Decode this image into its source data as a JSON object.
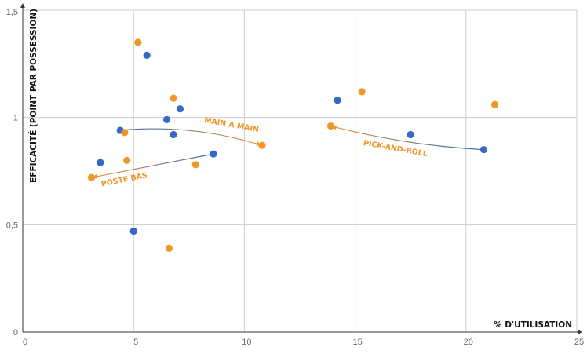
{
  "chart_data": {
    "type": "scatter",
    "xlabel": "% D'UTILISATION",
    "ylabel": "EFFICACITÉ (POINT PAR POSSESSION)",
    "xlim": [
      0,
      25
    ],
    "ylim": [
      0,
      1.5
    ],
    "x_ticks": [
      "0",
      "5",
      "10",
      "15",
      "20",
      "25"
    ],
    "y_ticks": [
      "0",
      "0,5",
      "1",
      "1,5"
    ],
    "grid": true,
    "colors": {
      "blue": "#3568c8",
      "orange": "#f0962a",
      "grid": "#cccccc",
      "axis": "#333333"
    },
    "series": [
      {
        "color": "blue",
        "points": [
          {
            "x": 3.5,
            "y": 0.79
          },
          {
            "x": 4.4,
            "y": 0.94
          },
          {
            "x": 5.0,
            "y": 0.47
          },
          {
            "x": 5.6,
            "y": 1.29
          },
          {
            "x": 6.5,
            "y": 0.99
          },
          {
            "x": 6.8,
            "y": 0.92
          },
          {
            "x": 7.1,
            "y": 1.04
          },
          {
            "x": 8.6,
            "y": 0.83
          },
          {
            "x": 14.2,
            "y": 1.08
          },
          {
            "x": 17.5,
            "y": 0.92
          },
          {
            "x": 20.8,
            "y": 0.85
          }
        ]
      },
      {
        "color": "orange",
        "points": [
          {
            "x": 3.1,
            "y": 0.72
          },
          {
            "x": 4.6,
            "y": 0.93
          },
          {
            "x": 4.7,
            "y": 0.8
          },
          {
            "x": 5.2,
            "y": 1.35
          },
          {
            "x": 6.6,
            "y": 0.39
          },
          {
            "x": 6.8,
            "y": 1.09
          },
          {
            "x": 7.8,
            "y": 0.78
          },
          {
            "x": 10.8,
            "y": 0.87
          },
          {
            "x": 13.9,
            "y": 0.96
          },
          {
            "x": 15.3,
            "y": 1.12
          },
          {
            "x": 21.3,
            "y": 1.06
          }
        ]
      }
    ],
    "annotations": [
      {
        "text": "MAIN À MAIN",
        "from": {
          "x": 4.4,
          "y": 0.94
        },
        "to": {
          "x": 10.8,
          "y": 0.87
        },
        "bulge": -0.1,
        "label_at": {
          "x": 9.4,
          "y": 0.955
        },
        "angle": 10
      },
      {
        "text": "POSTE BAS",
        "from": {
          "x": 8.6,
          "y": 0.83
        },
        "to": {
          "x": 3.1,
          "y": 0.72
        },
        "bulge": 0.0,
        "label_at": {
          "x": 4.6,
          "y": 0.7
        },
        "angle": -11
      },
      {
        "text": "PICK-AND-ROLL",
        "from": {
          "x": 20.8,
          "y": 0.85
        },
        "to": {
          "x": 13.9,
          "y": 0.96
        },
        "bulge": -0.05,
        "label_at": {
          "x": 16.8,
          "y": 0.845
        },
        "angle": 10
      }
    ]
  }
}
